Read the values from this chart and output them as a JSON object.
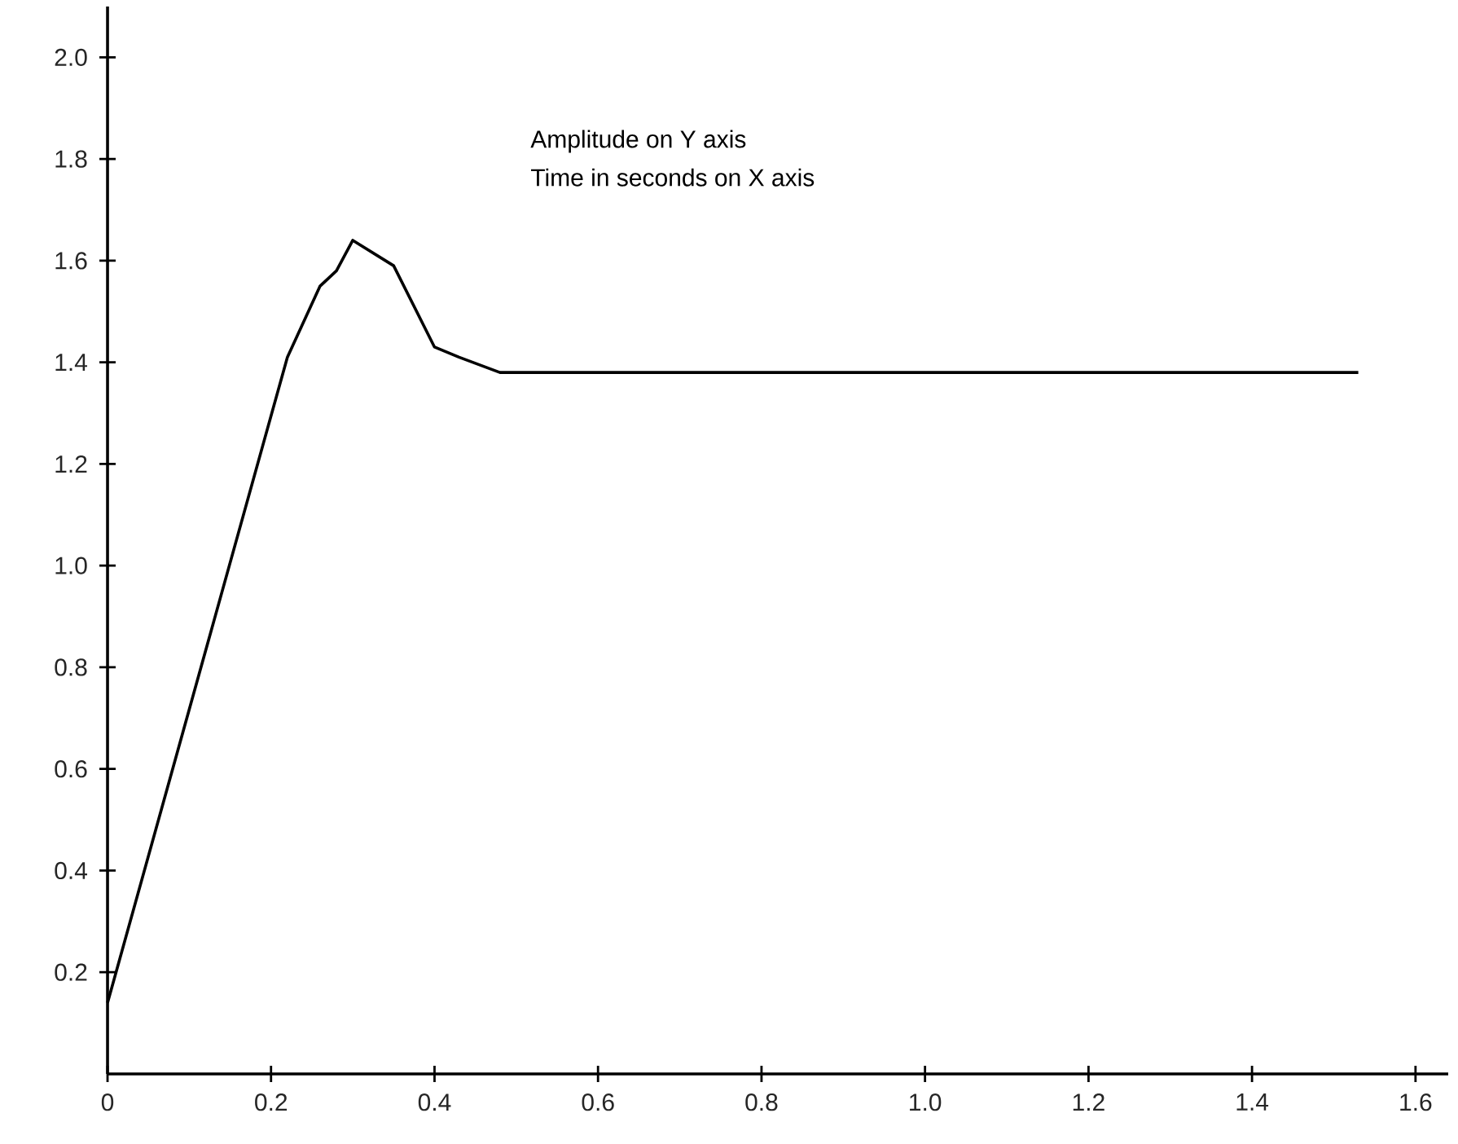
{
  "chart_data": {
    "type": "line",
    "annotations": [
      "Amplitude on  Y axis",
      "Time in seconds on X axis"
    ],
    "x": [
      0,
      0.22,
      0.26,
      0.28,
      0.3,
      0.35,
      0.4,
      0.43,
      0.48,
      1.53
    ],
    "series": [
      {
        "color": "#000000",
        "values": [
          0.14,
          1.41,
          1.55,
          1.58,
          1.64,
          1.59,
          1.43,
          1.41,
          1.38,
          1.38
        ]
      }
    ],
    "xlim": [
      0,
      1.64
    ],
    "ylim": [
      0,
      2.1
    ],
    "xticks": [
      0,
      0.2,
      0.4,
      0.6,
      0.8,
      {
        "value": 1,
        "label": "1.0"
      },
      1.2,
      1.4,
      1.6
    ],
    "yticks": [
      0.2,
      0.4,
      0.6,
      0.8,
      {
        "value": 1,
        "label": "1.0"
      },
      1.2,
      1.4,
      1.6,
      1.8,
      {
        "value": 2,
        "label": "2.0"
      }
    ],
    "grid": false
  }
}
